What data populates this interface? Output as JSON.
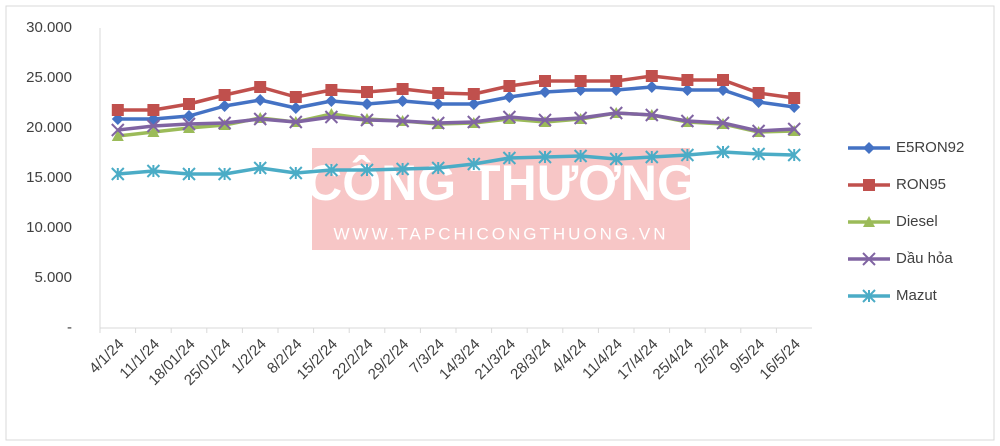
{
  "chart_data": {
    "type": "line",
    "categories": [
      "4/1/24",
      "11/1/24",
      "18/01/24",
      "25/01/24",
      "1/2/24",
      "8/2/24",
      "15/2/24",
      "22/2/24",
      "29/2/24",
      "7/3/24",
      "14/3/24",
      "21/3/24",
      "28/3/24",
      "4/4/24",
      "11/4/24",
      "17/4/24",
      "25/4/24",
      "2/5/24",
      "9/5/24",
      "16/5/24"
    ],
    "series": [
      {
        "name": "E5RON92",
        "color": "#4472c4",
        "marker": "diamond",
        "values": [
          20900,
          20900,
          21200,
          22200,
          22800,
          22000,
          22700,
          22400,
          22700,
          22400,
          22400,
          23100,
          23600,
          23800,
          23800,
          24100,
          23800,
          23800,
          22600,
          22100
        ]
      },
      {
        "name": "RON95",
        "color": "#c0504d",
        "marker": "square",
        "values": [
          21800,
          21800,
          22400,
          23300,
          24100,
          23100,
          23800,
          23600,
          23900,
          23500,
          23400,
          24200,
          24700,
          24700,
          24700,
          25200,
          24800,
          24800,
          23500,
          23000
        ]
      },
      {
        "name": "Diesel",
        "color": "#9bbb59",
        "marker": "triangle",
        "values": [
          19200,
          19600,
          20000,
          20300,
          21000,
          20600,
          21400,
          20900,
          20700,
          20400,
          20500,
          20900,
          20600,
          20900,
          21500,
          21300,
          20600,
          20400,
          19600,
          19700
        ]
      },
      {
        "name": "Dầu hỏa",
        "color": "#8064a2",
        "marker": "x",
        "values": [
          19800,
          20200,
          20400,
          20500,
          20900,
          20600,
          21100,
          20800,
          20700,
          20500,
          20600,
          21100,
          20800,
          21000,
          21500,
          21300,
          20700,
          20500,
          19700,
          19900
        ]
      },
      {
        "name": "Mazut",
        "color": "#4bacc6",
        "marker": "star",
        "values": [
          15400,
          15700,
          15400,
          15400,
          16000,
          15500,
          15800,
          15800,
          15900,
          16000,
          16400,
          17000,
          17100,
          17200,
          16900,
          17100,
          17300,
          17600,
          17400,
          17300
        ]
      }
    ],
    "ylim": [
      0,
      30000
    ],
    "yticks": [
      {
        "value": 0,
        "label": "-"
      },
      {
        "value": 5000,
        "label": "5.000"
      },
      {
        "value": 10000,
        "label": "10.000"
      },
      {
        "value": 15000,
        "label": "15.000"
      },
      {
        "value": 20000,
        "label": "20.000"
      },
      {
        "value": 25000,
        "label": "25.000"
      },
      {
        "value": 30000,
        "label": "30.000"
      }
    ],
    "grid": false,
    "legend": "right",
    "watermark": {
      "title": "CÔNG THƯƠNG",
      "url": "WWW.TAPCHICONGTHUONG.VN"
    }
  }
}
